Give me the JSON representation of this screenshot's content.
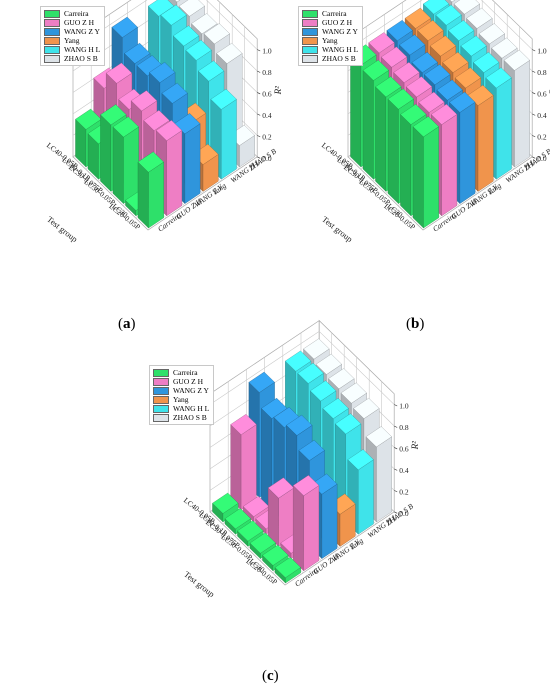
{
  "charts": [
    {
      "id": "a",
      "label_letter": "a",
      "chart_data": {
        "type": "bar3d",
        "series": [
          "Carreira",
          "GUO Z H",
          "WANG Z Y",
          "Yang",
          "WANG H L",
          "ZHAO S B"
        ],
        "test_groups": [
          "LC40-0.05P",
          "LC30-0.1P",
          "LC30-0.075P",
          "LC30-0.05P",
          "LC30",
          "LC20-0.05P"
        ],
        "zlabel": "R²",
        "zticks": [
          "0.0",
          "0.2",
          "0.4",
          "0.6",
          "0.8",
          "1.0"
        ],
        "ylabel": "Test group",
        "zlim": [
          0,
          1.1
        ],
        "values": [
          [
            0.35,
            0.62,
            0.98,
            null,
            0.95,
            0.97
          ],
          [
            0.33,
            0.78,
            0.85,
            null,
            0.98,
            0.95
          ],
          [
            0.62,
            0.65,
            0.85,
            0.05,
            0.9,
            0.9
          ],
          [
            0.62,
            0.75,
            0.9,
            0.3,
            0.88,
            0.92
          ],
          [
            0.05,
            0.68,
            0.82,
            0.52,
            0.8,
            0.85
          ],
          [
            0.52,
            0.7,
            0.65,
            0.25,
            0.65,
            0.2
          ]
        ]
      }
    },
    {
      "id": "b",
      "label_letter": "b",
      "chart_data": {
        "type": "bar3d",
        "series": [
          "Carreira",
          "GUO Z H",
          "WANG Z Y",
          "Yang",
          "WANG H L",
          "ZHAO S B"
        ],
        "test_groups": [
          "LC40-0.05P",
          "LC30-0.1P",
          "LC30-0.075P",
          "LC30-0.05P",
          "LC30",
          "LC20-0.05P"
        ],
        "zlabel": "R²",
        "zticks": [
          "0.0",
          "0.2",
          "0.4",
          "0.6",
          "0.8",
          "1.0"
        ],
        "ylabel": "Test group",
        "zlim": [
          0,
          1.1
        ],
        "values": [
          [
            0.95,
            0.95,
            0.95,
            0.95,
            0.97,
            0.97
          ],
          [
            0.92,
            0.93,
            0.93,
            0.95,
            0.98,
            0.97
          ],
          [
            0.88,
            0.9,
            0.88,
            0.92,
            0.95,
            0.95
          ],
          [
            0.88,
            0.88,
            0.88,
            0.88,
            0.92,
            0.92
          ],
          [
            0.85,
            0.85,
            0.85,
            0.85,
            0.88,
            0.9
          ],
          [
            0.85,
            0.85,
            0.85,
            0.8,
            0.85,
            0.9
          ]
        ]
      }
    },
    {
      "id": "c",
      "label_letter": "c",
      "chart_data": {
        "type": "bar3d",
        "series": [
          "Carreira",
          "GUO Z H",
          "WANG Z Y",
          "Yang",
          "WANG H L",
          "ZHAO S B"
        ],
        "test_groups": [
          "LC40-0.05P",
          "LC30-0.1P",
          "LC30-0.075P",
          "LC30-0.05P",
          "LC30",
          "LC20-0.05P"
        ],
        "zlabel": "R²",
        "zticks": [
          "0.0",
          "0.2",
          "0.4",
          "0.6",
          "0.8",
          "1.0"
        ],
        "ylabel": "Test group",
        "zlim": [
          0,
          1.1
        ],
        "values": [
          [
            0.08,
            0.7,
            0.98,
            null,
            0.95,
            0.95
          ],
          [
            0.05,
            0.05,
            0.85,
            null,
            0.95,
            0.92
          ],
          [
            0.05,
            0.05,
            0.88,
            null,
            0.9,
            0.9
          ],
          [
            0.05,
            0.45,
            0.92,
            null,
            0.85,
            0.88
          ],
          [
            0.05,
            0.05,
            0.8,
            null,
            0.82,
            0.85
          ],
          [
            0.05,
            0.7,
            0.6,
            0.3,
            0.6,
            0.7
          ]
        ]
      }
    }
  ],
  "colors": {
    "Carreira": "#2ee06a",
    "GUO Z H": "#ee7ec4",
    "WANG Z Y": "#2f95dc",
    "Yang": "#f0944c",
    "WANG H L": "#3fe3ea",
    "ZHAO S B": "#dde3e8"
  }
}
